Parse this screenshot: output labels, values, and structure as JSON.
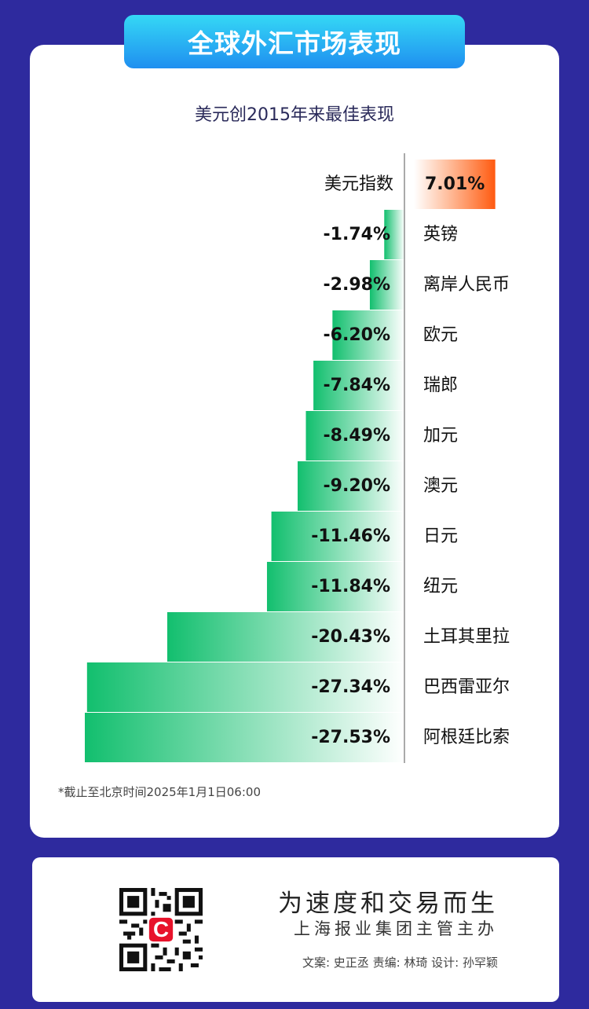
{
  "header": {
    "title": "全球外汇市场表现"
  },
  "footer": {
    "slogan": "为速度和交易而生",
    "organization": "上海报业集团主管主办",
    "credits": "文案: 史正丞  责编: 林琦  设计: 孙罕颖",
    "qr_icon": "qr-code-icon",
    "logo_icon": "cailian-logo-icon",
    "logo_color": "#e8132b"
  },
  "colors": {
    "background": "#2e2a9e",
    "positive_bar": "#ff6a1a",
    "negative_bar": "#12bf6e"
  },
  "chart_data": {
    "type": "bar",
    "orientation": "horizontal",
    "title": "美元创2015年来最佳表现",
    "footnote": "*截止至北京时间2025年1月1日06:00",
    "unit": "%",
    "categories": [
      "美元指数",
      "英镑",
      "离岸人民币",
      "欧元",
      "瑞郎",
      "加元",
      "澳元",
      "日元",
      "纽元",
      "土耳其里拉",
      "巴西雷亚尔",
      "阿根廷比索"
    ],
    "values": [
      7.01,
      -1.74,
      -2.98,
      -6.2,
      -7.84,
      -8.49,
      -9.2,
      -11.46,
      -11.84,
      -20.43,
      -27.34,
      -27.53
    ],
    "labels": [
      "7.01%",
      "-1.74%",
      "-2.98%",
      "-6.20%",
      "-7.84%",
      "-8.49%",
      "-9.20%",
      "-11.46%",
      "-11.84%",
      "-20.43%",
      "-27.34%",
      "-27.53%"
    ],
    "xlim": [
      -27.53,
      7.01
    ],
    "grid": false,
    "legend": "none"
  }
}
